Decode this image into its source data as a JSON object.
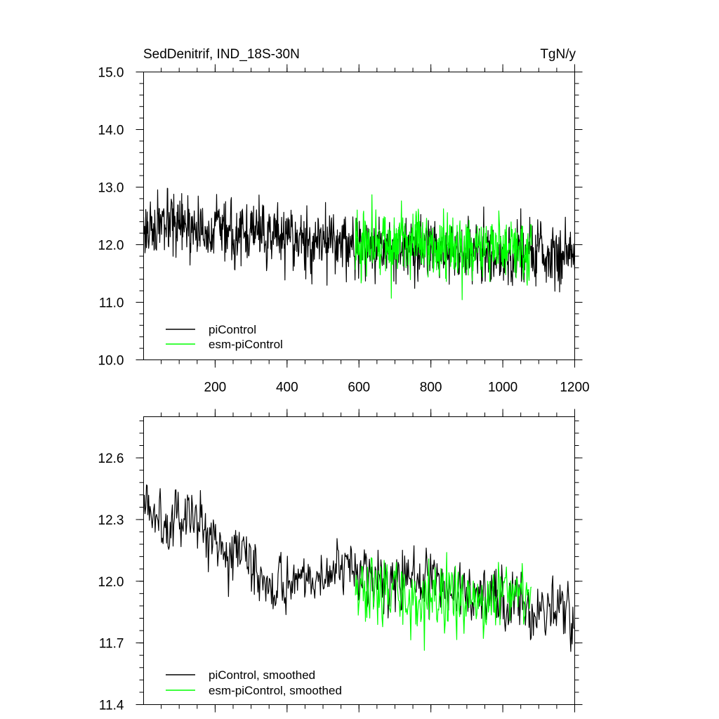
{
  "chart_data": [
    {
      "type": "line",
      "title": "SedDenitrif, IND_18S-30N",
      "units": "TgN/y",
      "xlim": [
        1,
        1200
      ],
      "ylim": [
        10.0,
        15.0
      ],
      "xticks": [
        200,
        400,
        600,
        800,
        1000,
        1200
      ],
      "xtick_labels": [
        "200",
        "400",
        "600",
        "800",
        "1000",
        "1200"
      ],
      "yticks": [
        10.0,
        11.0,
        12.0,
        13.0,
        14.0,
        15.0
      ],
      "ytick_labels": [
        "10.0",
        "11.0",
        "12.0",
        "13.0",
        "14.0",
        "15.0"
      ],
      "grid": false,
      "legend_position": "bottom-left",
      "series": [
        {
          "name": "piControl",
          "color": "#000000",
          "x_range": [
            1,
            1200
          ],
          "step": 1,
          "mean_segments": [
            [
              1,
              12.3
            ],
            [
              300,
              12.2
            ],
            [
              600,
              12.0
            ],
            [
              900,
              11.9
            ],
            [
              1200,
              11.8
            ]
          ],
          "spread": 0.45,
          "min": 10.1,
          "max": 14.7,
          "seed": 17
        },
        {
          "name": "esm-piControl",
          "color": "#00ff00",
          "x_range": [
            590,
            1080
          ],
          "step": 1,
          "mean_segments": [
            [
              590,
              12.0
            ],
            [
              1080,
              11.9
            ]
          ],
          "spread": 0.5,
          "min": 10.05,
          "max": 13.75,
          "seed": 91
        }
      ]
    },
    {
      "type": "line",
      "title": "",
      "xlim": [
        1,
        1200
      ],
      "ylim": [
        11.4,
        12.8
      ],
      "xticks": [
        200,
        400,
        600,
        800,
        1000,
        1200
      ],
      "yticks": [
        11.4,
        11.7,
        12.0,
        12.3,
        12.6
      ],
      "ytick_labels": [
        "11.4",
        "11.7",
        "12.0",
        "12.3",
        "12.6"
      ],
      "grid": false,
      "legend_position": "bottom-left",
      "series": [
        {
          "name": "piControl, smoothed",
          "color": "#000000",
          "x_range": [
            1,
            1200
          ],
          "step": 2,
          "mean_segments": [
            [
              1,
              12.35
            ],
            [
              150,
              12.3
            ],
            [
              350,
              12.0
            ],
            [
              600,
              12.05
            ],
            [
              900,
              11.95
            ],
            [
              1200,
              11.85
            ]
          ],
          "spread": 0.13,
          "min": 11.43,
          "max": 12.63,
          "seed": 5
        },
        {
          "name": "esm-piControl, smoothed",
          "color": "#00ff00",
          "x_range": [
            590,
            1080
          ],
          "step": 2,
          "mean_segments": [
            [
              590,
              11.95
            ],
            [
              800,
              11.9
            ],
            [
              1080,
              11.95
            ]
          ],
          "spread": 0.15,
          "min": 11.5,
          "max": 12.32,
          "seed": 33
        }
      ]
    }
  ]
}
